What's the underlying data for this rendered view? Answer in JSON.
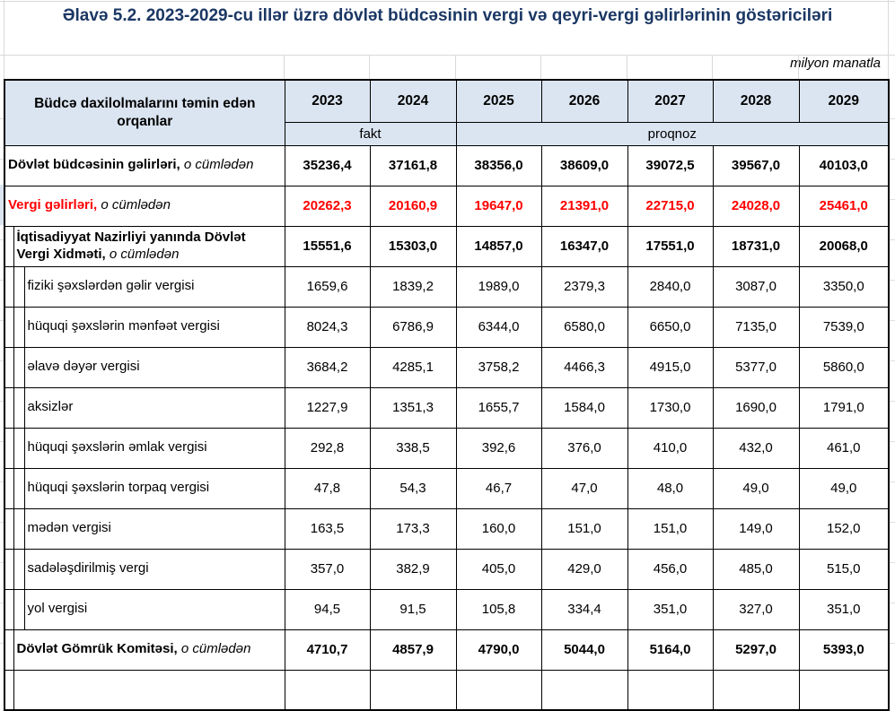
{
  "page": {
    "title": "Əlavə 5.2. 2023-2029-cu illər üzrə dövlət büdcəsinin vergi və qeyri-vergi gəlirlərinin göstəriciləri",
    "unit_note": "milyon manatla"
  },
  "colors": {
    "title_navy": "#1b3764",
    "header_blue": "#dbe5f1",
    "highlight_red": "#ff0000",
    "border_black": "#000000"
  },
  "table": {
    "org_header": "Büdcə daxilolmalarını təmin edən orqanlar",
    "years": [
      "2023",
      "2024",
      "2025",
      "2026",
      "2027",
      "2028",
      "2029"
    ],
    "fact_label": "fakt",
    "forecast_label": "proqnoz",
    "fact_year_span": 2,
    "forecast_year_span": 5,
    "rows": [
      {
        "label": "Dövlət büdcəsinin gəlirləri,",
        "suffix": "o cümlədən",
        "indent": 0,
        "bold": true,
        "red": false,
        "values": [
          "35236,4",
          "37161,8",
          "38356,0",
          "38609,0",
          "39072,5",
          "39567,0",
          "40103,0"
        ]
      },
      {
        "label": "Vergi gəlirləri,",
        "suffix": "o cümlədən",
        "indent": 0,
        "bold": true,
        "red": true,
        "values": [
          "20262,3",
          "20160,9",
          "19647,0",
          "21391,0",
          "22715,0",
          "24028,0",
          "25461,0"
        ]
      },
      {
        "label": "İqtisadiyyat Nazirliyi yanında Dövlət Vergi Xidməti,",
        "suffix": "o cümlədən",
        "indent": 1,
        "bold": true,
        "red": false,
        "values": [
          "15551,6",
          "15303,0",
          "14857,0",
          "16347,0",
          "17551,0",
          "18731,0",
          "20068,0"
        ]
      },
      {
        "label": "fiziki şəxslərdən gəlir vergisi",
        "suffix": null,
        "indent": 2,
        "bold": false,
        "red": false,
        "values": [
          "1659,6",
          "1839,2",
          "1989,0",
          "2379,3",
          "2840,0",
          "3087,0",
          "3350,0"
        ]
      },
      {
        "label": "hüquqi şəxslərin mənfəət vergisi",
        "suffix": null,
        "indent": 2,
        "bold": false,
        "red": false,
        "values": [
          "8024,3",
          "6786,9",
          "6344,0",
          "6580,0",
          "6650,0",
          "7135,0",
          "7539,0"
        ]
      },
      {
        "label": "əlavə dəyər vergisi",
        "suffix": null,
        "indent": 2,
        "bold": false,
        "red": false,
        "values": [
          "3684,2",
          "4285,1",
          "3758,2",
          "4466,3",
          "4915,0",
          "5377,0",
          "5860,0"
        ]
      },
      {
        "label": "aksizlər",
        "suffix": null,
        "indent": 2,
        "bold": false,
        "red": false,
        "values": [
          "1227,9",
          "1351,3",
          "1655,7",
          "1584,0",
          "1730,0",
          "1690,0",
          "1791,0"
        ]
      },
      {
        "label": "hüquqi şəxslərin əmlak vergisi",
        "suffix": null,
        "indent": 2,
        "bold": false,
        "red": false,
        "values": [
          "292,8",
          "338,5",
          "392,6",
          "376,0",
          "410,0",
          "432,0",
          "461,0"
        ]
      },
      {
        "label": "hüquqi şəxslərin torpaq vergisi",
        "suffix": null,
        "indent": 2,
        "bold": false,
        "red": false,
        "values": [
          "47,8",
          "54,3",
          "46,7",
          "47,0",
          "48,0",
          "49,0",
          "49,0"
        ]
      },
      {
        "label": "mədən vergisi",
        "suffix": null,
        "indent": 2,
        "bold": false,
        "red": false,
        "values": [
          "163,5",
          "173,3",
          "160,0",
          "151,0",
          "151,0",
          "149,0",
          "152,0"
        ]
      },
      {
        "label": "sadələşdirilmiş  vergi",
        "suffix": null,
        "indent": 2,
        "bold": false,
        "red": false,
        "values": [
          "357,0",
          "382,9",
          "405,0",
          "429,0",
          "456,0",
          "485,0",
          "515,0"
        ]
      },
      {
        "label": "yol vergisi",
        "suffix": null,
        "indent": 2,
        "bold": false,
        "red": false,
        "values": [
          "94,5",
          "91,5",
          "105,8",
          "334,4",
          "351,0",
          "327,0",
          "351,0"
        ]
      },
      {
        "label": "Dövlət Gömrük Komitəsi,",
        "suffix": "o cümlədən",
        "indent": 1,
        "bold": true,
        "red": false,
        "values": [
          "4710,7",
          "4857,9",
          "4790,0",
          "5044,0",
          "5164,0",
          "5297,0",
          "5393,0"
        ]
      },
      {
        "label": "",
        "suffix": null,
        "indent": 1,
        "bold": false,
        "red": false,
        "values": [
          "",
          "",
          "",
          "",
          "",
          "",
          ""
        ]
      }
    ]
  }
}
